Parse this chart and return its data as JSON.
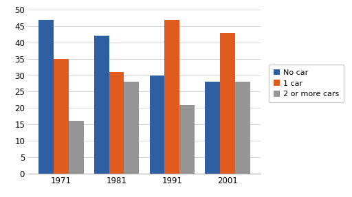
{
  "years": [
    "1971",
    "1981",
    "1991",
    "2001"
  ],
  "no_car": [
    47,
    42,
    30,
    28
  ],
  "one_car": [
    35,
    31,
    47,
    43
  ],
  "two_or_more": [
    16,
    28,
    21,
    28
  ],
  "colors": {
    "no_car": "#2e5fa3",
    "one_car": "#e05c1e",
    "two_or_more": "#959595"
  },
  "legend_labels": [
    "No car",
    "1 car",
    "2 or more cars"
  ],
  "ylim": [
    0,
    50
  ],
  "yticks": [
    0,
    5,
    10,
    15,
    20,
    25,
    30,
    35,
    40,
    45,
    50
  ],
  "bar_width": 0.27,
  "figsize": [
    5.12,
    2.87
  ],
  "dpi": 100
}
